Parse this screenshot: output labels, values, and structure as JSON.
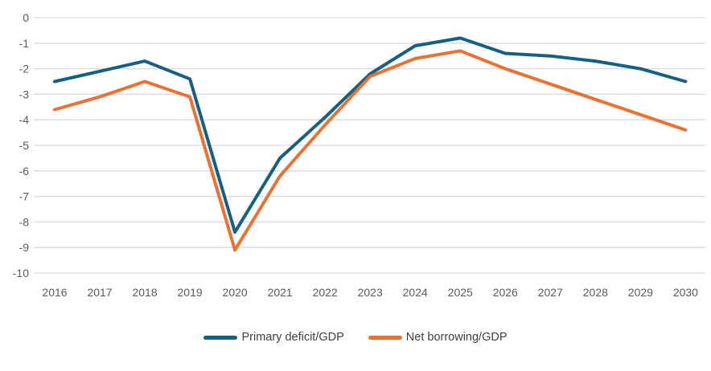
{
  "chart_data": {
    "type": "line",
    "title": "",
    "xlabel": "",
    "ylabel": "",
    "categories": [
      "2016",
      "2017",
      "2018",
      "2019",
      "2020",
      "2021",
      "2022",
      "2023",
      "2024",
      "2025",
      "2026",
      "2027",
      "2028",
      "2029",
      "2030"
    ],
    "series": [
      {
        "name": "Primary deficit/GDP",
        "color": "#156082",
        "values": [
          -2.5,
          -2.1,
          -1.7,
          -2.4,
          -8.4,
          -5.5,
          -3.9,
          -2.2,
          -1.1,
          -0.8,
          -1.4,
          -1.5,
          -1.7,
          -2.0,
          -2.5
        ]
      },
      {
        "name": "Net borrowing/GDP",
        "color": "#E97132",
        "values": [
          -3.6,
          -3.1,
          -2.5,
          -3.1,
          -9.1,
          -6.2,
          -4.2,
          -2.3,
          -1.6,
          -1.3,
          -2.0,
          -2.6,
          -3.2,
          -3.8,
          -4.4
        ]
      }
    ],
    "ylim": [
      -10,
      0
    ],
    "yticks": [
      0,
      -1,
      -2,
      -3,
      -4,
      -5,
      -6,
      -7,
      -8,
      -9,
      -10
    ],
    "grid": true,
    "legend_position": "bottom",
    "gridline_color": "#D9D9D9",
    "tick_label_color": "#595959",
    "legend_text_color": "#404040"
  }
}
